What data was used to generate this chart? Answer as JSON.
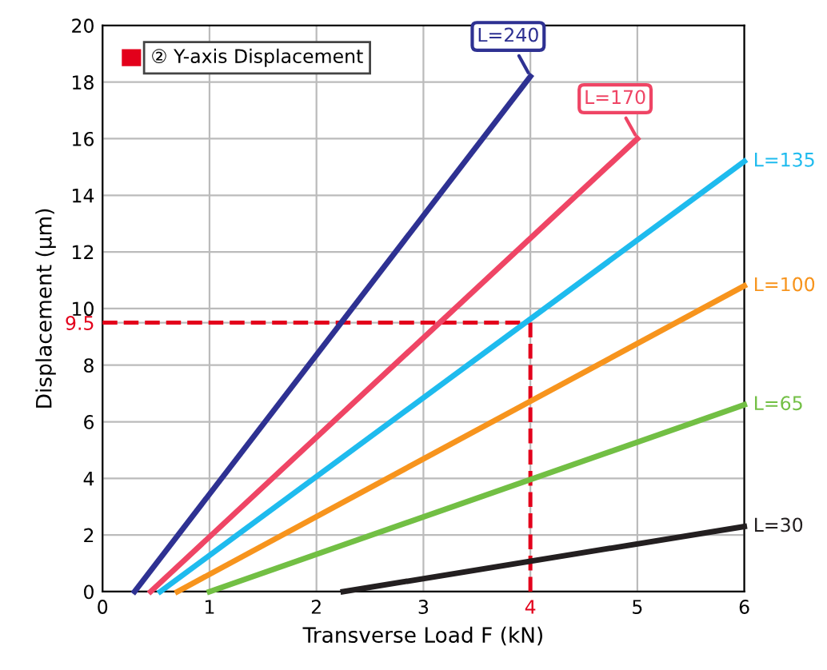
{
  "chart_data": {
    "type": "line",
    "xlabel": "Transverse Load F (kN)",
    "ylabel": "Displacement (μm)",
    "annotations": [
      "② Y-axis Displacement"
    ],
    "xlim": [
      0,
      6
    ],
    "ylim": [
      0,
      20
    ],
    "xticks": [
      0,
      1,
      2,
      3,
      4,
      5,
      6
    ],
    "yticks": [
      0,
      2,
      4,
      6,
      8,
      {
        "value": 9.5,
        "label": "9.5"
      },
      10,
      12,
      14,
      16,
      18,
      20
    ],
    "grid": true,
    "line_style": "solid",
    "marker": "none",
    "ref_lines": [
      {
        "axis": "y",
        "value": 9.5,
        "color": "#e3001b",
        "line_style": "dashed"
      },
      {
        "axis": "x",
        "value": 4,
        "color": "#e3001b",
        "line_style": "dashed"
      }
    ],
    "series": [
      {
        "name": "L=240",
        "color": "#2e3192",
        "x": [
          0.3,
          4
        ],
        "values": [
          0,
          18.2
        ]
      },
      {
        "name": "L=170",
        "color": "#ef4565",
        "x": [
          0.45,
          5
        ],
        "values": [
          0,
          16
        ]
      },
      {
        "name": "L=135",
        "color": "#1ebbee",
        "x": [
          0.54,
          6
        ],
        "values": [
          0,
          15.2
        ]
      },
      {
        "name": "L=100",
        "color": "#f7941d",
        "x": [
          0.7,
          6
        ],
        "values": [
          0,
          10.8
        ]
      },
      {
        "name": "L=65",
        "color": "#72bf44",
        "x": [
          1.0,
          6
        ],
        "values": [
          0,
          6.6
        ]
      },
      {
        "name": "L=30",
        "color": "#231f20",
        "x": [
          2.25,
          6
        ],
        "values": [
          0,
          2.3
        ]
      }
    ]
  }
}
